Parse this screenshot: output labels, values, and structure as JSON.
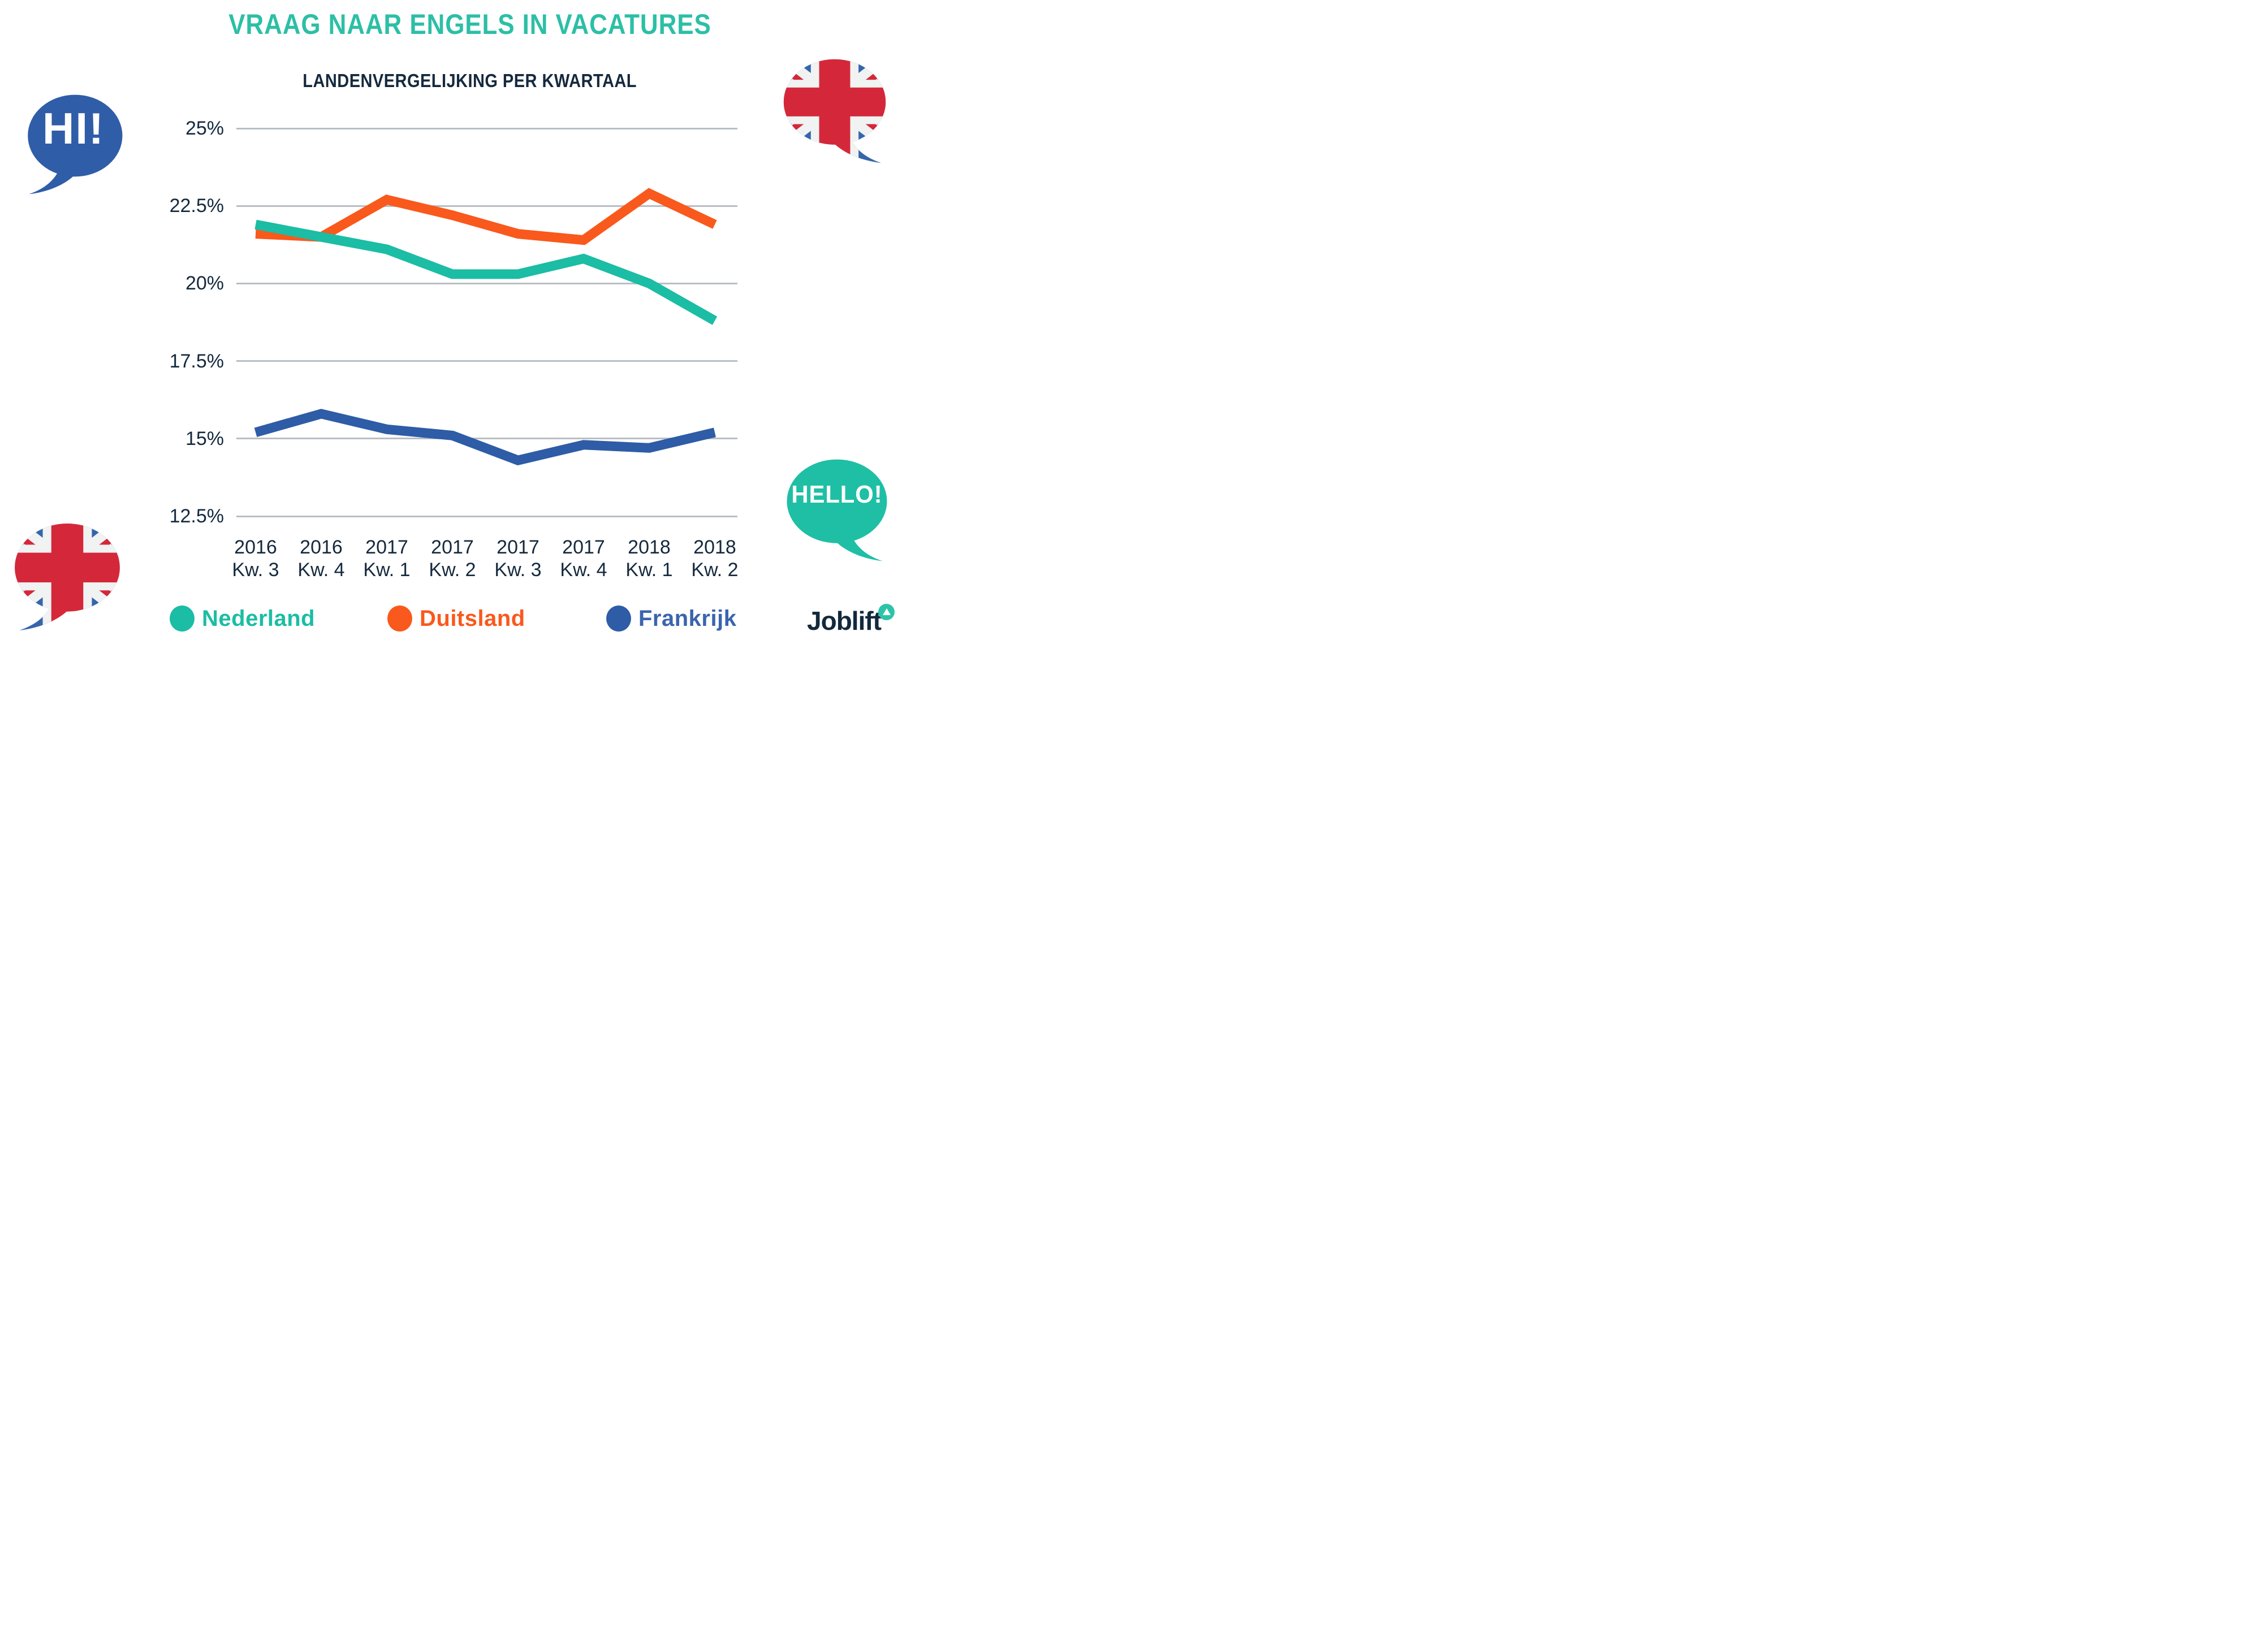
{
  "title": "VRAAG NAAR ENGELS IN VACATURES",
  "subtitle": "LANDENVERGELIJKING PER KWARTAAL",
  "decorations": {
    "hi_bubble": "HI!",
    "hello_bubble": "HELLO!"
  },
  "logo": {
    "text": "Joblift"
  },
  "colors": {
    "title_teal": "#2cbfa6",
    "navy": "#15293d",
    "gridline": "#b8bec3",
    "nederland": "#1bbda4",
    "duitsland": "#f9591c",
    "frankrijk": "#2e5ca6",
    "frankrijk_legend_text": "#3a64ae",
    "flag_red": "#d4283a",
    "flag_blue": "#3566ac",
    "flag_white": "#f1f2f2"
  },
  "chart_data": {
    "type": "line",
    "title": "VRAAG NAAR ENGELS IN VACATURES",
    "subtitle": "LANDENVERGELIJKING PER KWARTAAL",
    "grid": "horizontal",
    "legend_position": "bottom",
    "ylim": [
      12.5,
      25
    ],
    "y_tick_labels": [
      "25%",
      "22.5%",
      "20%",
      "17.5%",
      "15%",
      "12.5%"
    ],
    "x_tick_labels": [
      {
        "year": "2016",
        "quarter": "Kw. 3"
      },
      {
        "year": "2016",
        "quarter": "Kw. 4"
      },
      {
        "year": "2017",
        "quarter": "Kw. 1"
      },
      {
        "year": "2017",
        "quarter": "Kw. 2"
      },
      {
        "year": "2017",
        "quarter": "Kw. 3"
      },
      {
        "year": "2017",
        "quarter": "Kw. 4"
      },
      {
        "year": "2018",
        "quarter": "Kw. 1"
      },
      {
        "year": "2018",
        "quarter": "Kw. 2"
      }
    ],
    "series": [
      {
        "name": "Nederland",
        "color": "#1bbda4",
        "values": [
          21.9,
          21.5,
          21.1,
          20.3,
          20.3,
          20.8,
          20.0,
          18.8
        ]
      },
      {
        "name": "Duitsland",
        "color": "#f9591c",
        "values": [
          21.6,
          21.5,
          22.7,
          22.2,
          21.6,
          21.4,
          22.9,
          21.9
        ]
      },
      {
        "name": "Frankrijk",
        "color": "#2e5ca6",
        "values": [
          15.2,
          15.8,
          15.3,
          15.1,
          14.3,
          14.8,
          14.7,
          15.2
        ]
      }
    ]
  }
}
